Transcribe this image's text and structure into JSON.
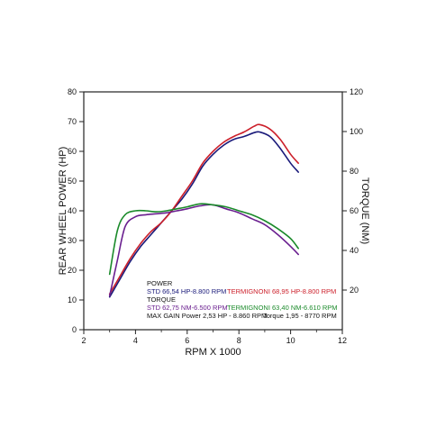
{
  "chart_data": {
    "type": "line",
    "xlabel": "RPM X 1000",
    "ylabel_left": "REAR WHEEL POWER (HP)",
    "ylabel_right": "TORQUE (NM)",
    "xlim": [
      2,
      12
    ],
    "ylim_left": [
      0,
      80
    ],
    "ylim_right": [
      0,
      120
    ],
    "x_ticks": [
      2,
      4,
      6,
      8,
      10,
      12
    ],
    "y_ticks_left": [
      0,
      10,
      20,
      30,
      40,
      50,
      60,
      70,
      80
    ],
    "y_ticks_right": [
      20,
      40,
      60,
      80,
      100,
      120
    ],
    "grid": false,
    "colors": {
      "std_power": "#1a1a7a",
      "termignoni_power": "#cc1f2a",
      "std_torque": "#6a1f8f",
      "termignoni_torque": "#1a8a2a"
    },
    "series": [
      {
        "name": "STD",
        "axis": "left",
        "color_key": "std_power",
        "x": [
          3.0,
          3.4,
          3.8,
          4.2,
          4.6,
          5.0,
          5.4,
          5.8,
          6.2,
          6.6,
          7.0,
          7.4,
          7.8,
          8.2,
          8.6,
          8.8,
          9.2,
          9.6,
          10.0,
          10.3
        ],
        "y": [
          11,
          17,
          23,
          28,
          32,
          36,
          40,
          44,
          49,
          55,
          59,
          62,
          64,
          65,
          66.3,
          66.5,
          65,
          61,
          56,
          53
        ]
      },
      {
        "name": "TERMIGNONI",
        "axis": "left",
        "color_key": "termignoni_power",
        "x": [
          3.0,
          3.4,
          3.8,
          4.2,
          4.6,
          5.0,
          5.4,
          5.8,
          6.2,
          6.6,
          7.0,
          7.4,
          7.8,
          8.2,
          8.6,
          8.8,
          9.2,
          9.6,
          10.0,
          10.3
        ],
        "y": [
          12,
          18,
          24,
          29,
          33,
          36,
          40,
          45,
          50,
          56,
          60,
          63,
          65,
          66.5,
          68.5,
          69,
          67.5,
          64,
          59,
          56
        ]
      },
      {
        "name": "STD",
        "axis": "right",
        "color_key": "std_torque",
        "x": [
          3.0,
          3.3,
          3.6,
          4.0,
          4.4,
          4.8,
          5.2,
          5.6,
          6.0,
          6.5,
          7.0,
          7.5,
          8.0,
          8.5,
          9.0,
          9.5,
          10.0,
          10.3
        ],
        "y": [
          17,
          35,
          52,
          57,
          58,
          58.5,
          59,
          60,
          61,
          62.5,
          63,
          61,
          59,
          56,
          53,
          48,
          42,
          38
        ]
      },
      {
        "name": "TERMIGNONI",
        "axis": "right",
        "color_key": "termignoni_torque",
        "x": [
          3.0,
          3.3,
          3.6,
          4.0,
          4.4,
          4.8,
          5.2,
          5.6,
          6.0,
          6.5,
          7.0,
          7.5,
          8.0,
          8.5,
          9.0,
          9.5,
          10.0,
          10.3
        ],
        "y": [
          28,
          50,
          58,
          60,
          60,
          59.5,
          60,
          61,
          62,
          63.5,
          63,
          62,
          60,
          58,
          55,
          51,
          46,
          41
        ]
      }
    ],
    "annotations": {
      "power_header": "POWER",
      "std_power": "STD 66,54 HP-8.800 RPM",
      "termignoni_power": "TERMIGNONI 68,95 HP-8.800 RPM",
      "torque_header": "TORQUE",
      "std_torque": "STD 62,75 NM-6.500 RPM",
      "termignoni_torque": "TERMIGNONI 63,40 NM-6.610 RPM",
      "max_gain_power": "MAX GAIN Power 2,53 HP - 8.860 RPM",
      "max_gain_torque": "Torque 1,95 - 8770 RPM"
    }
  }
}
